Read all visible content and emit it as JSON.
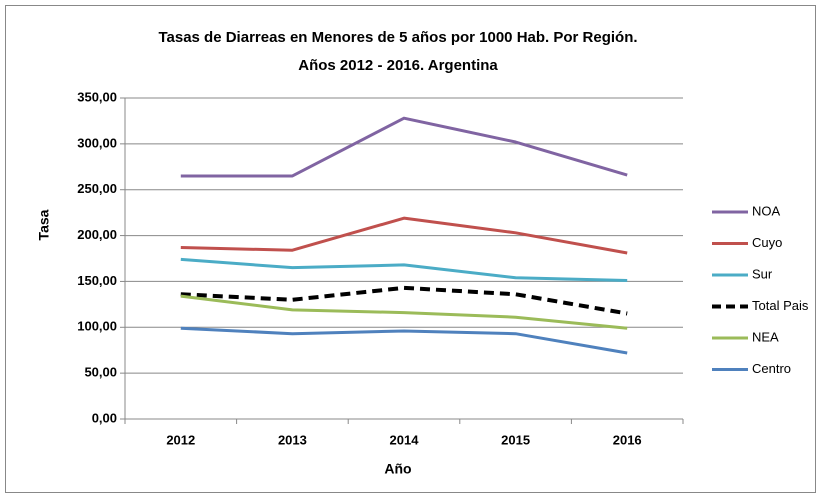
{
  "chart_data": {
    "type": "line",
    "title": "Tasas de Diarreas en Menores de 5 años por 1000 Hab. Por Región.",
    "subtitle": "Años 2012 - 2016. Argentina",
    "x_label": "Año",
    "y_label": "Tasa",
    "categories": [
      "2012",
      "2013",
      "2014",
      "2015",
      "2016"
    ],
    "series": [
      {
        "name": "NOA",
        "color": "#8064a2",
        "values": [
          265,
          265,
          328,
          302,
          266
        ]
      },
      {
        "name": "Cuyo",
        "color": "#c0504d",
        "values": [
          187,
          184,
          219,
          203,
          181
        ]
      },
      {
        "name": "Sur",
        "color": "#4bacc6",
        "values": [
          174,
          165,
          168,
          154,
          151
        ]
      },
      {
        "name": "Total Pais",
        "color": "#000000",
        "dashed": true,
        "values": [
          136,
          130,
          143,
          136,
          115
        ]
      },
      {
        "name": "NEA",
        "color": "#9bbb59",
        "values": [
          134,
          119,
          116,
          111,
          99
        ]
      },
      {
        "name": "Centro",
        "color": "#4f81bd",
        "values": [
          99,
          93,
          96,
          93,
          72
        ]
      }
    ],
    "ylim": [
      0,
      350
    ],
    "yticks": [
      {
        "value": 0,
        "label": "0,00"
      },
      {
        "value": 50,
        "label": "50,00"
      },
      {
        "value": 100,
        "label": "100,00"
      },
      {
        "value": 150,
        "label": "150,00"
      },
      {
        "value": 200,
        "label": "200,00"
      },
      {
        "value": 250,
        "label": "250,00"
      },
      {
        "value": 300,
        "label": "300,00"
      },
      {
        "value": 350,
        "label": "350,00"
      }
    ],
    "grid": true,
    "legend": "right"
  }
}
